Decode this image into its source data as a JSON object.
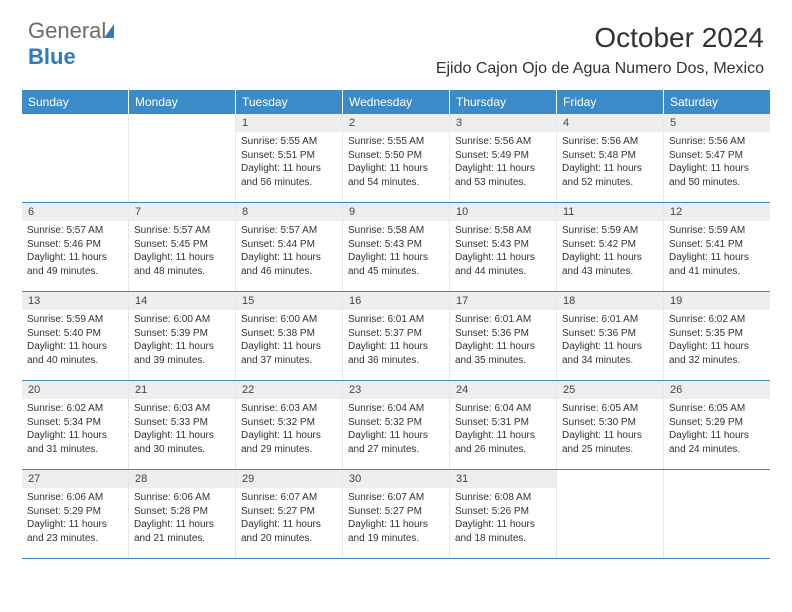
{
  "brand": {
    "part1": "General",
    "part2": "Blue"
  },
  "title": "October 2024",
  "location": "Ejido Cajon Ojo de Agua Numero Dos, Mexico",
  "colors": {
    "header_bg": "#3b8bc9",
    "header_text": "#ffffff",
    "daynum_bg": "#eeeeee",
    "week_border": "#3b8bc9",
    "text": "#333333",
    "background": "#ffffff"
  },
  "typography": {
    "title_fontsize": 28,
    "location_fontsize": 16,
    "header_fontsize": 12,
    "daynum_fontsize": 11,
    "content_fontsize": 10
  },
  "headers": [
    "Sunday",
    "Monday",
    "Tuesday",
    "Wednesday",
    "Thursday",
    "Friday",
    "Saturday"
  ],
  "weeks": [
    [
      {
        "empty": true
      },
      {
        "empty": true
      },
      {
        "num": "1",
        "sunrise": "Sunrise: 5:55 AM",
        "sunset": "Sunset: 5:51 PM",
        "day1": "Daylight: 11 hours",
        "day2": "and 56 minutes."
      },
      {
        "num": "2",
        "sunrise": "Sunrise: 5:55 AM",
        "sunset": "Sunset: 5:50 PM",
        "day1": "Daylight: 11 hours",
        "day2": "and 54 minutes."
      },
      {
        "num": "3",
        "sunrise": "Sunrise: 5:56 AM",
        "sunset": "Sunset: 5:49 PM",
        "day1": "Daylight: 11 hours",
        "day2": "and 53 minutes."
      },
      {
        "num": "4",
        "sunrise": "Sunrise: 5:56 AM",
        "sunset": "Sunset: 5:48 PM",
        "day1": "Daylight: 11 hours",
        "day2": "and 52 minutes."
      },
      {
        "num": "5",
        "sunrise": "Sunrise: 5:56 AM",
        "sunset": "Sunset: 5:47 PM",
        "day1": "Daylight: 11 hours",
        "day2": "and 50 minutes."
      }
    ],
    [
      {
        "num": "6",
        "sunrise": "Sunrise: 5:57 AM",
        "sunset": "Sunset: 5:46 PM",
        "day1": "Daylight: 11 hours",
        "day2": "and 49 minutes."
      },
      {
        "num": "7",
        "sunrise": "Sunrise: 5:57 AM",
        "sunset": "Sunset: 5:45 PM",
        "day1": "Daylight: 11 hours",
        "day2": "and 48 minutes."
      },
      {
        "num": "8",
        "sunrise": "Sunrise: 5:57 AM",
        "sunset": "Sunset: 5:44 PM",
        "day1": "Daylight: 11 hours",
        "day2": "and 46 minutes."
      },
      {
        "num": "9",
        "sunrise": "Sunrise: 5:58 AM",
        "sunset": "Sunset: 5:43 PM",
        "day1": "Daylight: 11 hours",
        "day2": "and 45 minutes."
      },
      {
        "num": "10",
        "sunrise": "Sunrise: 5:58 AM",
        "sunset": "Sunset: 5:43 PM",
        "day1": "Daylight: 11 hours",
        "day2": "and 44 minutes."
      },
      {
        "num": "11",
        "sunrise": "Sunrise: 5:59 AM",
        "sunset": "Sunset: 5:42 PM",
        "day1": "Daylight: 11 hours",
        "day2": "and 43 minutes."
      },
      {
        "num": "12",
        "sunrise": "Sunrise: 5:59 AM",
        "sunset": "Sunset: 5:41 PM",
        "day1": "Daylight: 11 hours",
        "day2": "and 41 minutes."
      }
    ],
    [
      {
        "num": "13",
        "sunrise": "Sunrise: 5:59 AM",
        "sunset": "Sunset: 5:40 PM",
        "day1": "Daylight: 11 hours",
        "day2": "and 40 minutes."
      },
      {
        "num": "14",
        "sunrise": "Sunrise: 6:00 AM",
        "sunset": "Sunset: 5:39 PM",
        "day1": "Daylight: 11 hours",
        "day2": "and 39 minutes."
      },
      {
        "num": "15",
        "sunrise": "Sunrise: 6:00 AM",
        "sunset": "Sunset: 5:38 PM",
        "day1": "Daylight: 11 hours",
        "day2": "and 37 minutes."
      },
      {
        "num": "16",
        "sunrise": "Sunrise: 6:01 AM",
        "sunset": "Sunset: 5:37 PM",
        "day1": "Daylight: 11 hours",
        "day2": "and 36 minutes."
      },
      {
        "num": "17",
        "sunrise": "Sunrise: 6:01 AM",
        "sunset": "Sunset: 5:36 PM",
        "day1": "Daylight: 11 hours",
        "day2": "and 35 minutes."
      },
      {
        "num": "18",
        "sunrise": "Sunrise: 6:01 AM",
        "sunset": "Sunset: 5:36 PM",
        "day1": "Daylight: 11 hours",
        "day2": "and 34 minutes."
      },
      {
        "num": "19",
        "sunrise": "Sunrise: 6:02 AM",
        "sunset": "Sunset: 5:35 PM",
        "day1": "Daylight: 11 hours",
        "day2": "and 32 minutes."
      }
    ],
    [
      {
        "num": "20",
        "sunrise": "Sunrise: 6:02 AM",
        "sunset": "Sunset: 5:34 PM",
        "day1": "Daylight: 11 hours",
        "day2": "and 31 minutes."
      },
      {
        "num": "21",
        "sunrise": "Sunrise: 6:03 AM",
        "sunset": "Sunset: 5:33 PM",
        "day1": "Daylight: 11 hours",
        "day2": "and 30 minutes."
      },
      {
        "num": "22",
        "sunrise": "Sunrise: 6:03 AM",
        "sunset": "Sunset: 5:32 PM",
        "day1": "Daylight: 11 hours",
        "day2": "and 29 minutes."
      },
      {
        "num": "23",
        "sunrise": "Sunrise: 6:04 AM",
        "sunset": "Sunset: 5:32 PM",
        "day1": "Daylight: 11 hours",
        "day2": "and 27 minutes."
      },
      {
        "num": "24",
        "sunrise": "Sunrise: 6:04 AM",
        "sunset": "Sunset: 5:31 PM",
        "day1": "Daylight: 11 hours",
        "day2": "and 26 minutes."
      },
      {
        "num": "25",
        "sunrise": "Sunrise: 6:05 AM",
        "sunset": "Sunset: 5:30 PM",
        "day1": "Daylight: 11 hours",
        "day2": "and 25 minutes."
      },
      {
        "num": "26",
        "sunrise": "Sunrise: 6:05 AM",
        "sunset": "Sunset: 5:29 PM",
        "day1": "Daylight: 11 hours",
        "day2": "and 24 minutes."
      }
    ],
    [
      {
        "num": "27",
        "sunrise": "Sunrise: 6:06 AM",
        "sunset": "Sunset: 5:29 PM",
        "day1": "Daylight: 11 hours",
        "day2": "and 23 minutes."
      },
      {
        "num": "28",
        "sunrise": "Sunrise: 6:06 AM",
        "sunset": "Sunset: 5:28 PM",
        "day1": "Daylight: 11 hours",
        "day2": "and 21 minutes."
      },
      {
        "num": "29",
        "sunrise": "Sunrise: 6:07 AM",
        "sunset": "Sunset: 5:27 PM",
        "day1": "Daylight: 11 hours",
        "day2": "and 20 minutes."
      },
      {
        "num": "30",
        "sunrise": "Sunrise: 6:07 AM",
        "sunset": "Sunset: 5:27 PM",
        "day1": "Daylight: 11 hours",
        "day2": "and 19 minutes."
      },
      {
        "num": "31",
        "sunrise": "Sunrise: 6:08 AM",
        "sunset": "Sunset: 5:26 PM",
        "day1": "Daylight: 11 hours",
        "day2": "and 18 minutes."
      },
      {
        "empty": true
      },
      {
        "empty": true
      }
    ]
  ]
}
